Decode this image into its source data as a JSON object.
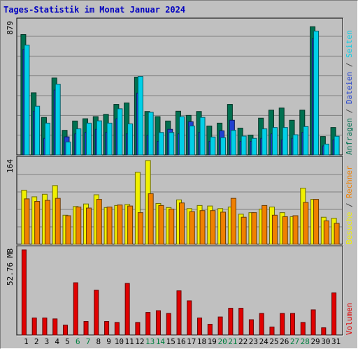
{
  "title": "Tages-Statistik im Monat Januar 2024",
  "colors": {
    "background": "#c0c0c0",
    "title": "#0000c0",
    "weekday_label": "#000000",
    "weekend_label": "#008040",
    "gridline": "#808080",
    "anfragen": "#007050",
    "dateien": "#2040d0",
    "seiten": "#00d0e8",
    "besuche": "#f0f000",
    "rechner": "#f08000",
    "volumen": "#e00000"
  },
  "chart_data": [
    {
      "type": "bar",
      "panel": "top",
      "axis_max_label": "879",
      "ylim": [
        0,
        879
      ],
      "side_legend": [
        {
          "text": "Anfragen",
          "color_key": "anfragen"
        },
        {
          "text": "Dateien",
          "color_key": "dateien"
        },
        {
          "text": "Seiten",
          "color_key": "seiten"
        }
      ],
      "categories": [
        "1",
        "2",
        "3",
        "4",
        "5",
        "6",
        "7",
        "8",
        "9",
        "10",
        "11",
        "12",
        "13",
        "14",
        "15",
        "16",
        "17",
        "18",
        "19",
        "20",
        "21",
        "22",
        "23",
        "24",
        "25",
        "26",
        "27",
        "28",
        "29",
        "30",
        "31"
      ],
      "weekend_days": [
        "6",
        "7",
        "13",
        "14",
        "20",
        "21",
        "27",
        "28"
      ],
      "series": [
        {
          "name": "Anfragen",
          "color_key": "anfragen",
          "values": [
            798,
            412,
            249,
            510,
            163,
            225,
            240,
            254,
            269,
            335,
            345,
            516,
            288,
            254,
            225,
            290,
            262,
            288,
            192,
            211,
            335,
            178,
            132,
            244,
            297,
            311,
            230,
            297,
            850,
            122,
            182
          ]
        },
        {
          "name": "Dateien",
          "color_key": "dateien",
          "values": [
            700,
            290,
            110,
            430,
            120,
            140,
            150,
            170,
            150,
            240,
            140,
            410,
            130,
            90,
            170,
            140,
            220,
            150,
            90,
            160,
            230,
            90,
            90,
            110,
            140,
            100,
            110,
            150,
            770,
            60,
            100
          ]
        },
        {
          "name": "Seiten",
          "color_key": "seiten",
          "values": [
            728,
            323,
            211,
            469,
            86,
            173,
            211,
            226,
            211,
            306,
            206,
            520,
            283,
            149,
            149,
            254,
            192,
            249,
            119,
            115,
            163,
            125,
            110,
            173,
            182,
            182,
            134,
            188,
            821,
            72,
            124
          ]
        }
      ]
    },
    {
      "type": "bar",
      "panel": "middle",
      "axis_max_label": "164",
      "ylim": [
        0,
        164
      ],
      "side_legend": [
        {
          "text": "Besuche",
          "color_key": "besuche"
        },
        {
          "text": "Rechner",
          "color_key": "rechner"
        }
      ],
      "categories": [
        "1",
        "2",
        "3",
        "4",
        "5",
        "6",
        "7",
        "8",
        "9",
        "10",
        "11",
        "12",
        "13",
        "14",
        "15",
        "16",
        "17",
        "18",
        "19",
        "20",
        "21",
        "22",
        "23",
        "24",
        "25",
        "26",
        "27",
        "28",
        "29",
        "30",
        "31"
      ],
      "series": [
        {
          "name": "Besuche",
          "color_key": "besuche",
          "values": [
            106,
            93,
            98,
            115,
            57,
            74,
            79,
            97,
            72,
            76,
            78,
            141,
            164,
            80,
            72,
            87,
            70,
            76,
            75,
            70,
            73,
            59,
            62,
            69,
            73,
            62,
            54,
            110,
            88,
            53,
            51
          ]
        },
        {
          "name": "Rechner",
          "color_key": "rechner",
          "values": [
            89,
            84,
            86,
            90,
            56,
            73,
            71,
            88,
            73,
            77,
            75,
            62,
            99,
            76,
            69,
            81,
            64,
            66,
            66,
            63,
            90,
            53,
            62,
            76,
            57,
            54,
            56,
            82,
            88,
            46,
            41
          ]
        }
      ]
    },
    {
      "type": "bar",
      "panel": "bottom",
      "axis_max_label": "52.76 MB",
      "ylim": [
        0,
        52.76
      ],
      "side_legend": [
        {
          "text": "Volumen",
          "color_key": "volumen"
        }
      ],
      "categories": [
        "1",
        "2",
        "3",
        "4",
        "5",
        "6",
        "7",
        "8",
        "9",
        "10",
        "11",
        "12",
        "13",
        "14",
        "15",
        "16",
        "17",
        "18",
        "19",
        "20",
        "21",
        "22",
        "23",
        "24",
        "25",
        "26",
        "27",
        "28",
        "29",
        "30",
        "31"
      ],
      "series": [
        {
          "name": "Volumen",
          "color_key": "volumen",
          "values": [
            52.76,
            10.6,
            10.6,
            10.0,
            6.1,
            32.4,
            8.4,
            27.8,
            8.4,
            7.8,
            32.0,
            7.8,
            14.0,
            15.1,
            13.4,
            27.4,
            21.2,
            10.6,
            6.7,
            11.2,
            16.6,
            16.6,
            9.5,
            13.4,
            5.0,
            13.4,
            13.4,
            7.8,
            15.6,
            4.5,
            26.1
          ]
        }
      ]
    }
  ]
}
